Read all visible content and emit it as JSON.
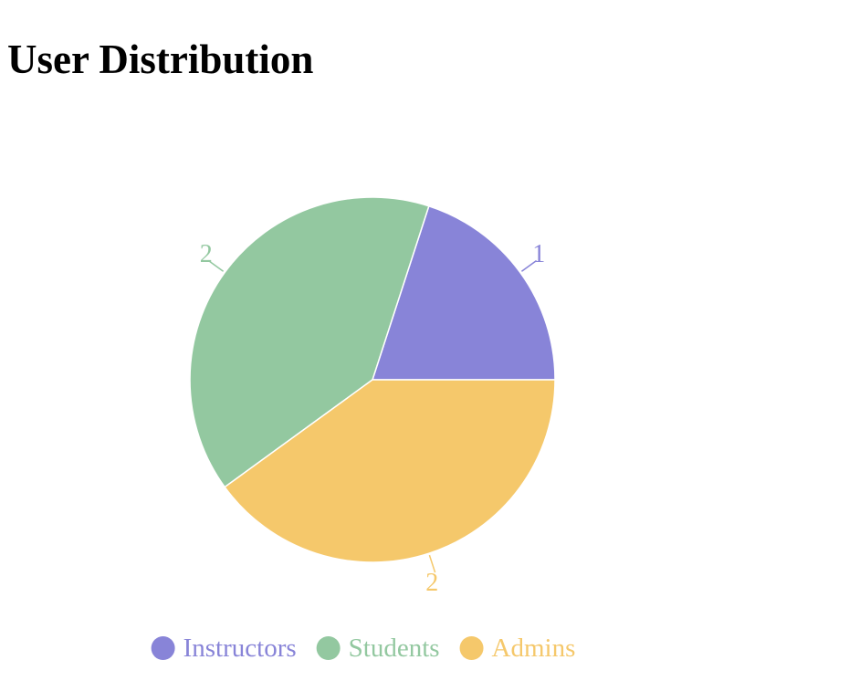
{
  "page": {
    "title": "User Distribution"
  },
  "chart_data": {
    "type": "pie",
    "categories": [
      "Instructors",
      "Students",
      "Admins"
    ],
    "values": [
      1,
      2,
      2
    ],
    "colors": [
      "#8884d8",
      "#93c8a0",
      "#f5c86b"
    ],
    "start_angle_deg": 0,
    "direction": "counter-clockwise",
    "legend": {
      "placement": "bottom",
      "marker": "circle"
    },
    "data_labels": true
  }
}
